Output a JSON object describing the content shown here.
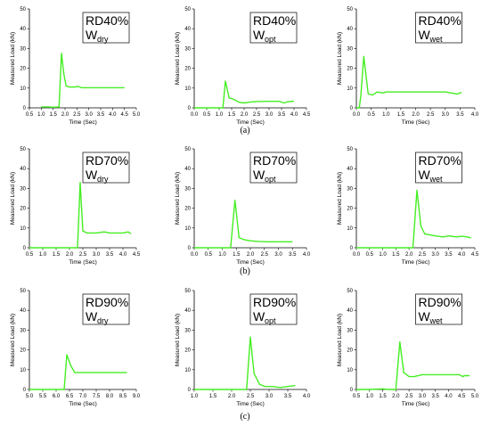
{
  "figure": {
    "row_labels": [
      "(a)",
      "(b)",
      "(c)"
    ],
    "line_color": "#44ee22"
  },
  "chart_data": [
    {
      "type": "line",
      "legend": {
        "main": "RD40%",
        "sym": "W",
        "sub": "dry"
      },
      "xlabel": "Time (Sec)",
      "ylabel": "Measured Load (kN)",
      "xlim": [
        0.5,
        5.0
      ],
      "xticks": [
        "0.5",
        "1.0",
        "1.5",
        "2.0",
        "2.5",
        "3.0",
        "3.5",
        "4.0",
        "4.5",
        "5.0"
      ],
      "ylim": [
        0,
        50
      ],
      "yticks": [
        "0",
        "10",
        "20",
        "30",
        "40",
        "50"
      ],
      "x": [
        1.0,
        1.3,
        1.5,
        1.75,
        1.85,
        1.95,
        2.05,
        2.2,
        2.4,
        2.55,
        2.7,
        3.0,
        3.5,
        4.0,
        4.5
      ],
      "y": [
        0.5,
        0.5,
        0.3,
        0.5,
        27.5,
        17,
        11,
        10.5,
        10.5,
        10.8,
        10.2,
        10.2,
        10.2,
        10.2,
        10.2
      ]
    },
    {
      "type": "line",
      "legend": {
        "main": "RD40%",
        "sym": "W",
        "sub": "opt"
      },
      "xlabel": "Time (Sec)",
      "ylabel": "Measured Load (kN)",
      "xlim": [
        0.0,
        4.5
      ],
      "xticks": [
        "0.0",
        "0.5",
        "1.0",
        "1.5",
        "2.0",
        "2.5",
        "3.0",
        "3.5",
        "4.0",
        "4.5"
      ],
      "ylim": [
        0,
        50
      ],
      "yticks": [
        "0",
        "10",
        "20",
        "30",
        "40",
        "50"
      ],
      "x": [
        0.0,
        0.5,
        1.0,
        1.15,
        1.25,
        1.4,
        1.55,
        1.8,
        2.0,
        2.3,
        2.5,
        3.0,
        3.4,
        3.6,
        3.8,
        4.0
      ],
      "y": [
        0,
        0,
        0,
        0,
        13.5,
        5,
        4.5,
        2.8,
        2.5,
        3,
        3.2,
        3.3,
        3.3,
        2.5,
        3.2,
        3.3
      ]
    },
    {
      "type": "line",
      "legend": {
        "main": "RD40%",
        "sym": "W",
        "sub": "wet"
      },
      "xlabel": "Time (Sec)",
      "ylabel": "Measured Load (kN)",
      "xlim": [
        0.0,
        4.0
      ],
      "xticks": [
        "0.0",
        "0.5",
        "1.0",
        "1.5",
        "2.0",
        "2.5",
        "3.0",
        "3.5",
        "4.0"
      ],
      "ylim": [
        0,
        50
      ],
      "yticks": [
        "0",
        "10",
        "20",
        "30",
        "40",
        "50"
      ],
      "x": [
        0.0,
        0.1,
        0.15,
        0.25,
        0.4,
        0.55,
        0.7,
        0.9,
        1.0,
        1.5,
        2.0,
        2.5,
        2.8,
        3.0,
        3.2,
        3.4,
        3.55
      ],
      "y": [
        0,
        0,
        6,
        26,
        7,
        6.5,
        8,
        7.5,
        8,
        8,
        8,
        8,
        8,
        8,
        7.5,
        7,
        7.8
      ]
    },
    {
      "type": "line",
      "legend": {
        "main": "RD70%",
        "sym": "W",
        "sub": "dry"
      },
      "xlabel": "Time (Sec)",
      "ylabel": "Measured Load (kN)",
      "xlim": [
        0.5,
        4.5
      ],
      "xticks": [
        "0.5",
        "1.0",
        "1.5",
        "2.0",
        "2.5",
        "3.0",
        "3.5",
        "4.0",
        "4.5"
      ],
      "ylim": [
        0,
        50
      ],
      "yticks": [
        "0",
        "10",
        "20",
        "30",
        "40",
        "50"
      ],
      "x": [
        0.5,
        1.0,
        1.5,
        2.0,
        2.3,
        2.4,
        2.5,
        2.65,
        2.8,
        3.0,
        3.3,
        3.5,
        3.7,
        4.0,
        4.2,
        4.3
      ],
      "y": [
        0,
        0,
        0,
        0,
        0,
        33,
        8.5,
        7.5,
        7.5,
        7.5,
        8,
        7.5,
        7.5,
        7.5,
        8,
        7
      ]
    },
    {
      "type": "line",
      "legend": {
        "main": "RD70%",
        "sym": "W",
        "sub": "opt"
      },
      "xlabel": "Time (Sec)",
      "ylabel": "Measured Load (kN)",
      "xlim": [
        0.0,
        4.0
      ],
      "xticks": [
        "0.0",
        "0.5",
        "1.0",
        "1.5",
        "2.0",
        "2.5",
        "3.0",
        "3.5",
        "4.0"
      ],
      "ylim": [
        0,
        50
      ],
      "yticks": [
        "0",
        "10",
        "20",
        "30",
        "40",
        "50"
      ],
      "x": [
        0.0,
        0.5,
        1.0,
        1.3,
        1.45,
        1.6,
        1.8,
        2.0,
        2.3,
        2.6,
        3.0,
        3.5
      ],
      "y": [
        0,
        0,
        0,
        0,
        24,
        5,
        4,
        3.5,
        3.2,
        3,
        3,
        3
      ]
    },
    {
      "type": "line",
      "legend": {
        "main": "RD70%",
        "sym": "W",
        "sub": "wet"
      },
      "xlabel": "Time (Sec)",
      "ylabel": "Measured Load (kN)",
      "xlim": [
        0.0,
        4.5
      ],
      "xticks": [
        "0.0",
        "0.5",
        "1.0",
        "1.5",
        "2.0",
        "2.5",
        "3.0",
        "3.5",
        "4.0",
        "4.5"
      ],
      "ylim": [
        0,
        50
      ],
      "yticks": [
        "0",
        "10",
        "20",
        "30",
        "40",
        "50"
      ],
      "x": [
        0.0,
        0.5,
        1.0,
        1.5,
        2.0,
        2.15,
        2.3,
        2.45,
        2.6,
        2.8,
        3.0,
        3.3,
        3.5,
        3.8,
        4.0,
        4.2,
        4.35
      ],
      "y": [
        0,
        0,
        0,
        0,
        0,
        0,
        29,
        11,
        7,
        6.5,
        6,
        5.5,
        6,
        5.5,
        5.8,
        5.5,
        5
      ]
    },
    {
      "type": "line",
      "legend": {
        "main": "RD90%",
        "sym": "W",
        "sub": "dry"
      },
      "xlabel": "Time (Sec)",
      "ylabel": "Measured Load (kN)",
      "xlim": [
        5.0,
        9.0
      ],
      "xticks": [
        "5.0",
        "5.5",
        "6.0",
        "6.5",
        "7.0",
        "7.5",
        "8.0",
        "8.5",
        "9.0"
      ],
      "ylim": [
        0,
        50
      ],
      "yticks": [
        "0",
        "10",
        "20",
        "30",
        "40",
        "50"
      ],
      "x": [
        5.0,
        5.5,
        6.0,
        6.3,
        6.4,
        6.55,
        6.7,
        7.0,
        7.5,
        8.0,
        8.5,
        8.65
      ],
      "y": [
        0,
        0,
        0,
        0,
        17.5,
        12,
        8.5,
        8.5,
        8.5,
        8.5,
        8.5,
        8.5
      ]
    },
    {
      "type": "line",
      "legend": {
        "main": "RD90%",
        "sym": "W",
        "sub": "opt"
      },
      "xlabel": "Time (Sec)",
      "ylabel": "Measured Load (kN)",
      "xlim": [
        1.0,
        4.0
      ],
      "xticks": [
        "1.0",
        "1.5",
        "2.0",
        "2.5",
        "3.0",
        "3.5",
        "4.0"
      ],
      "ylim": [
        0,
        50
      ],
      "yticks": [
        "0",
        "10",
        "20",
        "30",
        "40",
        "50"
      ],
      "x": [
        1.0,
        1.5,
        2.0,
        2.4,
        2.5,
        2.6,
        2.75,
        2.9,
        3.1,
        3.3,
        3.5,
        3.7
      ],
      "y": [
        0,
        0,
        0,
        0,
        26.5,
        8,
        2.5,
        1.5,
        1.5,
        1,
        1.5,
        2
      ]
    },
    {
      "type": "line",
      "legend": {
        "main": "RD90%",
        "sym": "W",
        "sub": "wet"
      },
      "xlabel": "Time (Sec)",
      "ylabel": "Measured Load (kN)",
      "xlim": [
        0.5,
        5.0
      ],
      "xticks": [
        "0.5",
        "1.0",
        "1.5",
        "2.0",
        "2.5",
        "3.0",
        "3.5",
        "4.0",
        "4.5",
        "5.0"
      ],
      "ylim": [
        0,
        50
      ],
      "yticks": [
        "0",
        "10",
        "20",
        "30",
        "40",
        "50"
      ],
      "x": [
        0.5,
        1.0,
        1.5,
        1.7,
        2.0,
        2.15,
        2.3,
        2.5,
        2.7,
        3.0,
        3.5,
        4.0,
        4.4,
        4.55,
        4.6,
        4.8
      ],
      "y": [
        0,
        0,
        0.3,
        0,
        0,
        24,
        8.5,
        6.5,
        6.5,
        7.5,
        7.5,
        7.5,
        7.5,
        6.5,
        7,
        7
      ]
    }
  ]
}
